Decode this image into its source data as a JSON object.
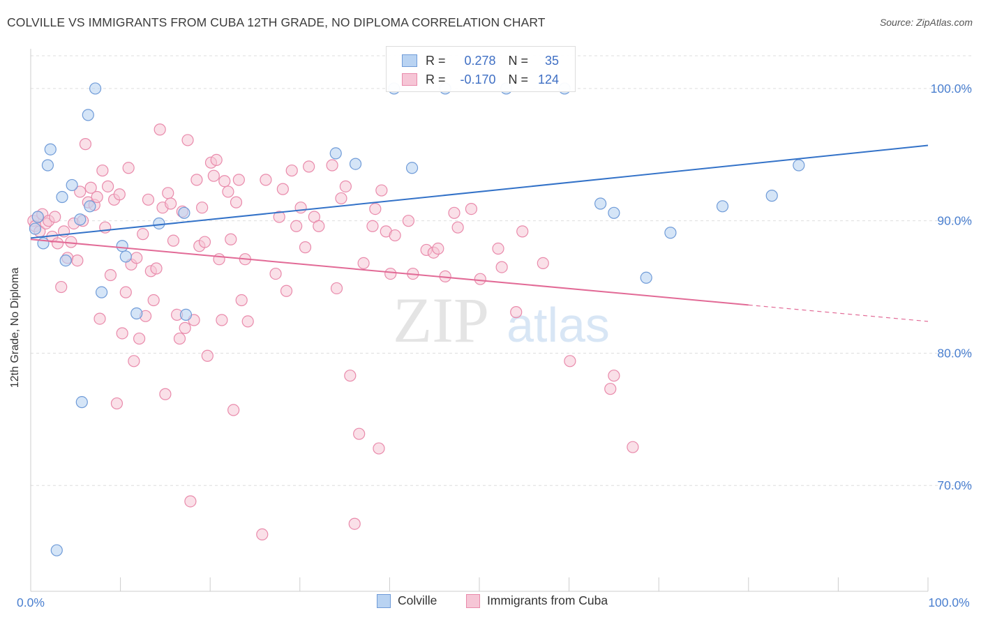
{
  "title": "COLVILLE VS IMMIGRANTS FROM CUBA 12TH GRADE, NO DIPLOMA CORRELATION CHART",
  "source": "Source: ZipAtlas.com",
  "watermark": {
    "zip": "ZIP",
    "atlas": "atlas"
  },
  "legend": {
    "rows": [
      {
        "r_label": "R =",
        "r_value": "0.278",
        "n_label": "N =",
        "n_value": "35"
      },
      {
        "r_label": "R =",
        "r_value": "-0.170",
        "n_label": "N =",
        "n_value": "124"
      }
    ]
  },
  "bottom_legend": {
    "series1": "Colville",
    "series2": "Immigrants from Cuba"
  },
  "colors": {
    "blue_fill": "#b9d3f2",
    "blue_stroke": "#6f9bd8",
    "blue_line": "#3372c8",
    "pink_fill": "#f6c6d6",
    "pink_stroke": "#e98aab",
    "pink_line": "#e26a96",
    "tick_text": "#4a7fcf",
    "grid": "#dddddd"
  },
  "chart_data": {
    "type": "scatter",
    "title": "COLVILLE VS IMMIGRANTS FROM CUBA 12TH GRADE, NO DIPLOMA CORRELATION CHART",
    "xlabel": "",
    "ylabel": "12th Grade, No Diploma",
    "x_tick_labels": [
      "0.0%",
      "100.0%"
    ],
    "y_tick_labels": [
      "100.0%",
      "90.0%",
      "80.0%",
      "70.0%"
    ],
    "y_ticks": [
      100,
      90,
      80,
      70
    ],
    "xlim": [
      0,
      100
    ],
    "ylim": [
      62,
      103
    ],
    "grid": true,
    "legend_position": "top-center",
    "series": [
      {
        "name": "Colville",
        "color": "#6f9bd8",
        "r": 0.278,
        "n": 35,
        "trend": {
          "x0": 0,
          "y0": 88.7,
          "x1": 100,
          "y1": 95.7,
          "dashed_from": null
        },
        "points": [
          [
            0.5,
            89.4
          ],
          [
            0.8,
            90.3
          ],
          [
            1.4,
            88.3
          ],
          [
            1.9,
            94.2
          ],
          [
            2.2,
            95.4
          ],
          [
            2.9,
            65.1
          ],
          [
            3.5,
            91.8
          ],
          [
            3.9,
            87.0
          ],
          [
            4.6,
            92.7
          ],
          [
            5.5,
            90.1
          ],
          [
            5.7,
            76.3
          ],
          [
            6.4,
            98.0
          ],
          [
            6.6,
            91.1
          ],
          [
            7.2,
            100.0
          ],
          [
            7.9,
            84.6
          ],
          [
            10.2,
            88.1
          ],
          [
            10.6,
            87.3
          ],
          [
            11.8,
            83.0
          ],
          [
            14.3,
            89.8
          ],
          [
            17.1,
            90.6
          ],
          [
            17.3,
            82.9
          ],
          [
            34.0,
            95.1
          ],
          [
            36.2,
            94.3
          ],
          [
            40.5,
            100.0
          ],
          [
            42.5,
            94.0
          ],
          [
            46.2,
            100.0
          ],
          [
            53.0,
            100.0
          ],
          [
            59.5,
            100.0
          ],
          [
            63.5,
            91.3
          ],
          [
            65.0,
            90.6
          ],
          [
            68.6,
            85.7
          ],
          [
            71.3,
            89.1
          ],
          [
            77.1,
            91.1
          ],
          [
            82.6,
            91.9
          ],
          [
            85.6,
            94.2
          ]
        ]
      },
      {
        "name": "Immigrants from Cuba",
        "color": "#e98aab",
        "r": -0.17,
        "n": 124,
        "trend": {
          "x0": 0,
          "y0": 88.6,
          "x1": 100,
          "y1": 82.4,
          "dashed_from": 80
        },
        "points": [
          [
            0.3,
            90.0
          ],
          [
            0.5,
            89.6
          ],
          [
            0.8,
            90.3
          ],
          [
            1.0,
            89.2
          ],
          [
            1.3,
            90.5
          ],
          [
            1.7,
            89.8
          ],
          [
            2.0,
            90.0
          ],
          [
            2.4,
            88.8
          ],
          [
            2.7,
            90.3
          ],
          [
            3.0,
            88.3
          ],
          [
            3.4,
            85.0
          ],
          [
            3.7,
            89.2
          ],
          [
            4.1,
            87.2
          ],
          [
            4.5,
            88.4
          ],
          [
            4.8,
            89.8
          ],
          [
            5.2,
            87.0
          ],
          [
            5.5,
            92.2
          ],
          [
            5.8,
            90.0
          ],
          [
            6.1,
            95.8
          ],
          [
            6.4,
            91.4
          ],
          [
            6.7,
            92.5
          ],
          [
            7.1,
            91.2
          ],
          [
            7.4,
            91.8
          ],
          [
            7.7,
            82.6
          ],
          [
            8.0,
            93.8
          ],
          [
            8.3,
            89.5
          ],
          [
            8.6,
            92.6
          ],
          [
            8.9,
            85.9
          ],
          [
            9.3,
            91.6
          ],
          [
            9.6,
            76.2
          ],
          [
            9.9,
            92.0
          ],
          [
            10.2,
            81.5
          ],
          [
            10.6,
            84.6
          ],
          [
            10.9,
            94.0
          ],
          [
            11.2,
            86.7
          ],
          [
            11.5,
            79.4
          ],
          [
            11.8,
            87.2
          ],
          [
            12.1,
            81.1
          ],
          [
            12.5,
            89.0
          ],
          [
            12.8,
            82.8
          ],
          [
            13.1,
            91.6
          ],
          [
            13.4,
            86.2
          ],
          [
            13.7,
            84.0
          ],
          [
            14.0,
            86.4
          ],
          [
            14.4,
            96.9
          ],
          [
            14.7,
            91.0
          ],
          [
            15.0,
            76.9
          ],
          [
            15.3,
            92.1
          ],
          [
            15.6,
            91.3
          ],
          [
            15.9,
            88.5
          ],
          [
            16.3,
            82.9
          ],
          [
            16.6,
            81.1
          ],
          [
            16.9,
            90.7
          ],
          [
            17.2,
            81.9
          ],
          [
            17.5,
            96.1
          ],
          [
            17.8,
            68.8
          ],
          [
            18.2,
            82.5
          ],
          [
            18.5,
            93.1
          ],
          [
            18.8,
            88.1
          ],
          [
            19.1,
            91.0
          ],
          [
            19.4,
            88.4
          ],
          [
            19.7,
            79.8
          ],
          [
            20.1,
            94.4
          ],
          [
            20.4,
            93.4
          ],
          [
            20.7,
            94.6
          ],
          [
            21.0,
            87.1
          ],
          [
            21.3,
            82.5
          ],
          [
            21.6,
            93.0
          ],
          [
            22.0,
            92.2
          ],
          [
            22.3,
            88.6
          ],
          [
            22.6,
            75.7
          ],
          [
            22.9,
            91.4
          ],
          [
            23.2,
            93.1
          ],
          [
            23.5,
            84.0
          ],
          [
            23.9,
            87.1
          ],
          [
            24.2,
            82.4
          ],
          [
            25.8,
            66.3
          ],
          [
            26.2,
            93.1
          ],
          [
            27.3,
            86.0
          ],
          [
            27.7,
            90.3
          ],
          [
            28.1,
            92.4
          ],
          [
            28.5,
            84.7
          ],
          [
            29.1,
            93.8
          ],
          [
            29.6,
            89.6
          ],
          [
            30.1,
            91.0
          ],
          [
            30.6,
            88.0
          ],
          [
            31.0,
            94.1
          ],
          [
            31.6,
            90.3
          ],
          [
            32.1,
            89.6
          ],
          [
            33.6,
            94.2
          ],
          [
            34.1,
            84.9
          ],
          [
            34.6,
            91.7
          ],
          [
            35.1,
            92.6
          ],
          [
            35.6,
            78.3
          ],
          [
            36.1,
            67.1
          ],
          [
            36.6,
            73.9
          ],
          [
            37.1,
            86.8
          ],
          [
            38.1,
            89.6
          ],
          [
            38.4,
            90.9
          ],
          [
            38.8,
            72.8
          ],
          [
            39.1,
            92.3
          ],
          [
            39.6,
            89.2
          ],
          [
            40.1,
            86.0
          ],
          [
            40.6,
            88.9
          ],
          [
            42.1,
            90.0
          ],
          [
            42.6,
            86.0
          ],
          [
            44.1,
            87.8
          ],
          [
            44.9,
            87.6
          ],
          [
            45.4,
            87.9
          ],
          [
            46.2,
            85.8
          ],
          [
            47.2,
            90.6
          ],
          [
            47.6,
            89.5
          ],
          [
            49.1,
            90.9
          ],
          [
            50.1,
            85.6
          ],
          [
            52.1,
            87.9
          ],
          [
            52.5,
            86.5
          ],
          [
            54.1,
            83.1
          ],
          [
            54.8,
            89.2
          ],
          [
            57.1,
            86.8
          ],
          [
            60.1,
            79.4
          ],
          [
            64.6,
            77.3
          ],
          [
            65.0,
            78.3
          ],
          [
            67.1,
            72.9
          ]
        ]
      }
    ]
  }
}
